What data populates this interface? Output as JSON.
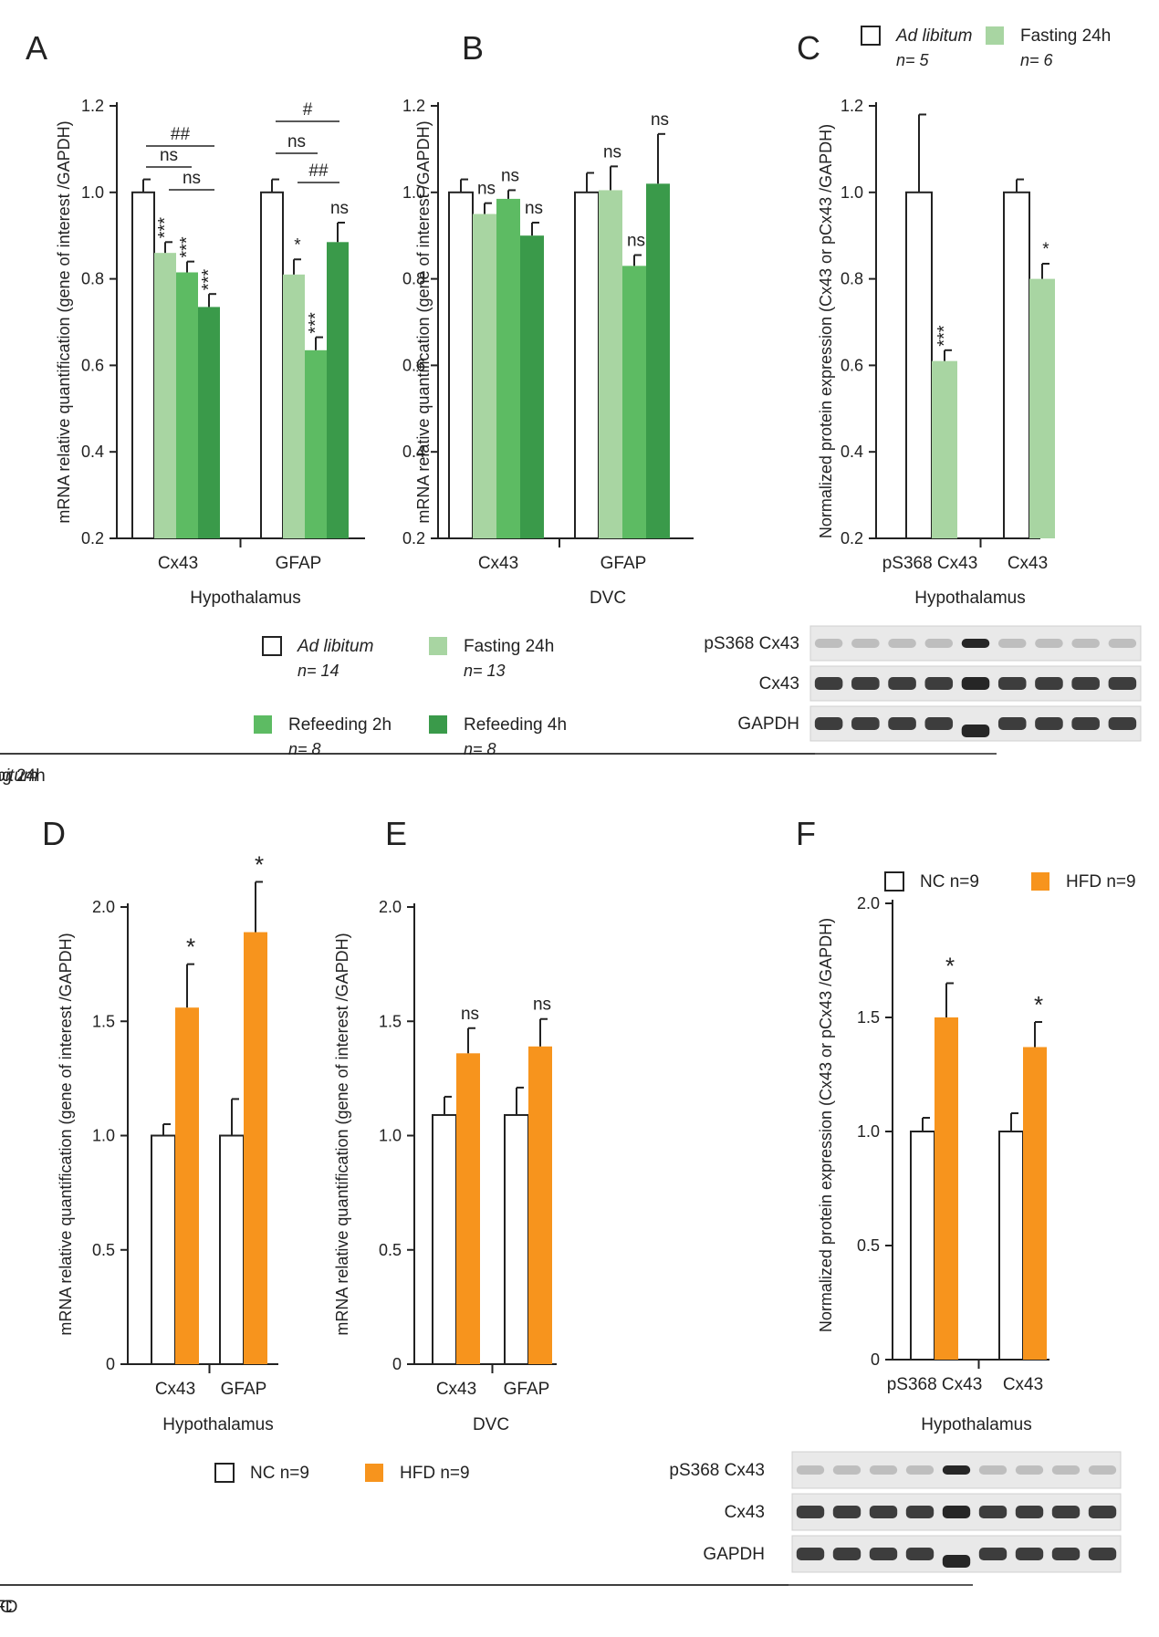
{
  "panels": [
    "A",
    "B",
    "C",
    "D",
    "E",
    "F"
  ],
  "colors": {
    "ad": "#ffffff",
    "fast": "#a8d5a2",
    "ref2": "#5dbb63",
    "ref4": "#3a9a4a",
    "nc": "#ffffff",
    "hfd": "#f7941d",
    "stroke": "#222222"
  },
  "legends": {
    "top": [
      {
        "key": "ad",
        "label": "Ad libitum",
        "n": "n= 14",
        "italic": true
      },
      {
        "key": "fast",
        "label": "Fasting 24h",
        "n": "n= 13"
      },
      {
        "key": "ref2",
        "label": "Refeeding 2h",
        "n": "n= 8"
      },
      {
        "key": "ref4",
        "label": "Refeeding 4h",
        "n": "n= 8"
      }
    ],
    "c": [
      {
        "key": "ad",
        "label": "Ad libitum",
        "n": "n= 5",
        "italic": true
      },
      {
        "key": "fast",
        "label": "Fasting 24h",
        "n": "n= 6"
      }
    ],
    "bottom": [
      {
        "key": "nc",
        "label": "NC n=9"
      },
      {
        "key": "hfd",
        "label": "HFD n=9"
      }
    ],
    "f": [
      {
        "key": "nc",
        "label": "NC n=9"
      },
      {
        "key": "hfd",
        "label": "HFD n=9"
      }
    ]
  },
  "sig": {
    "ns": "ns",
    "hash1": "#",
    "hash2": "##"
  },
  "blots": {
    "c": {
      "rows": [
        "pS368 Cx43",
        "Cx43",
        "GAPDH"
      ],
      "groups": [
        "Ad libitum",
        "Fasting 24h"
      ]
    },
    "f": {
      "rows": [
        "pS368 Cx43",
        "Cx43",
        "GAPDH"
      ],
      "groups": [
        "NC",
        "HFD"
      ]
    }
  },
  "chart_data": [
    {
      "id": "A",
      "type": "bar",
      "title": "",
      "xlabel": "Hypothalamus",
      "ylabel": "mRNA relative quantification (gene of interest /GAPDH)",
      "ylim": [
        0.2,
        1.2
      ],
      "yticks": [
        "0.2",
        "0.4",
        "0.6",
        "0.8",
        "1.0",
        "1.2"
      ],
      "categories": [
        "Cx43",
        "GFAP"
      ],
      "series": [
        {
          "name": "Ad libitum",
          "key": "ad",
          "values": [
            1.0,
            1.0
          ],
          "errors": [
            0.03,
            0.03
          ],
          "labels": [
            "",
            ""
          ]
        },
        {
          "name": "Fasting 24h",
          "key": "fast",
          "values": [
            0.86,
            0.81
          ],
          "errors": [
            0.025,
            0.035
          ],
          "labels": [
            "***",
            "*"
          ]
        },
        {
          "name": "Refeeding 2h",
          "key": "ref2",
          "values": [
            0.815,
            0.635
          ],
          "errors": [
            0.025,
            0.03
          ],
          "labels": [
            "***",
            "***"
          ]
        },
        {
          "name": "Refeeding 4h",
          "key": "ref4",
          "values": [
            0.735,
            0.885
          ],
          "errors": [
            0.03,
            0.045
          ],
          "labels": [
            "***",
            "ns"
          ]
        }
      ]
    },
    {
      "id": "B",
      "type": "bar",
      "title": "",
      "xlabel": "DVC",
      "ylabel": "mRNA relative quantification (gene of interest /GAPDH)",
      "ylim": [
        0.2,
        1.2
      ],
      "yticks": [
        "0.2",
        "0.4",
        "0.6",
        "0.8",
        "1.0",
        "1.2"
      ],
      "categories": [
        "Cx43",
        "GFAP"
      ],
      "series": [
        {
          "name": "Ad libitum",
          "key": "ad",
          "values": [
            1.0,
            1.0
          ],
          "errors": [
            0.03,
            0.045
          ],
          "labels": [
            "",
            ""
          ]
        },
        {
          "name": "Fasting 24h",
          "key": "fast",
          "values": [
            0.95,
            1.005
          ],
          "errors": [
            0.025,
            0.055
          ],
          "labels": [
            "ns",
            "ns"
          ]
        },
        {
          "name": "Refeeding 2h",
          "key": "ref2",
          "values": [
            0.985,
            0.83
          ],
          "errors": [
            0.02,
            0.025
          ],
          "labels": [
            "ns",
            "ns"
          ]
        },
        {
          "name": "Refeeding 4h",
          "key": "ref4",
          "values": [
            0.9,
            1.02
          ],
          "errors": [
            0.03,
            0.115
          ],
          "labels": [
            "ns",
            "ns"
          ]
        }
      ]
    },
    {
      "id": "C",
      "type": "bar",
      "title": "",
      "xlabel": "Hypothalamus",
      "ylabel": "Normalized protein expression (Cx43 or pCx43 /GAPDH)",
      "ylim": [
        0.2,
        1.2
      ],
      "yticks": [
        "0.2",
        "0.4",
        "0.6",
        "0.8",
        "1.0",
        "1.2"
      ],
      "categories": [
        "pS368 Cx43",
        "Cx43"
      ],
      "series": [
        {
          "name": "Ad libitum",
          "key": "ad",
          "values": [
            1.0,
            1.0
          ],
          "errors": [
            0.18,
            0.03
          ],
          "labels": [
            "",
            ""
          ]
        },
        {
          "name": "Fasting 24h",
          "key": "fast",
          "values": [
            0.61,
            0.8
          ],
          "errors": [
            0.025,
            0.035
          ],
          "labels": [
            "***",
            "*"
          ]
        }
      ]
    },
    {
      "id": "D",
      "type": "bar",
      "title": "",
      "xlabel": "Hypothalamus",
      "ylabel": "mRNA relative quantification (gene of interest /GAPDH)",
      "ylim": [
        0,
        2.0
      ],
      "yticks": [
        "0",
        "0.5",
        "1.0",
        "1.5",
        "2.0"
      ],
      "categories": [
        "Cx43",
        "GFAP"
      ],
      "series": [
        {
          "name": "NC",
          "key": "nc",
          "values": [
            1.0,
            1.0
          ],
          "errors": [
            0.05,
            0.16
          ],
          "labels": [
            "",
            ""
          ]
        },
        {
          "name": "HFD",
          "key": "hfd",
          "values": [
            1.56,
            1.89
          ],
          "errors": [
            0.19,
            0.22
          ],
          "labels": [
            "*",
            "*"
          ]
        }
      ]
    },
    {
      "id": "E",
      "type": "bar",
      "title": "",
      "xlabel": "DVC",
      "ylabel": "mRNA relative quantification (gene of interest /GAPDH)",
      "ylim": [
        0,
        2.0
      ],
      "yticks": [
        "0",
        "0.5",
        "1.0",
        "1.5",
        "2.0"
      ],
      "categories": [
        "Cx43",
        "GFAP"
      ],
      "series": [
        {
          "name": "NC",
          "key": "nc",
          "values": [
            1.09,
            1.09
          ],
          "errors": [
            0.08,
            0.12
          ],
          "labels": [
            "",
            ""
          ]
        },
        {
          "name": "HFD",
          "key": "hfd",
          "values": [
            1.36,
            1.39
          ],
          "errors": [
            0.11,
            0.12
          ],
          "labels": [
            "ns",
            "ns"
          ]
        }
      ]
    },
    {
      "id": "F",
      "type": "bar",
      "title": "",
      "xlabel": "Hypothalamus",
      "ylabel": "Normalized protein expression (Cx43 or pCx43 /GAPDH)",
      "ylim": [
        0,
        2.0
      ],
      "yticks": [
        "0",
        "0.5",
        "1.0",
        "1.5",
        "2.0"
      ],
      "categories": [
        "pS368 Cx43",
        "Cx43"
      ],
      "series": [
        {
          "name": "NC",
          "key": "nc",
          "values": [
            1.0,
            1.0
          ],
          "errors": [
            0.06,
            0.08
          ],
          "labels": [
            "",
            ""
          ]
        },
        {
          "name": "HFD",
          "key": "hfd",
          "values": [
            1.5,
            1.37
          ],
          "errors": [
            0.15,
            0.11
          ],
          "labels": [
            "*",
            "*"
          ]
        }
      ]
    }
  ]
}
